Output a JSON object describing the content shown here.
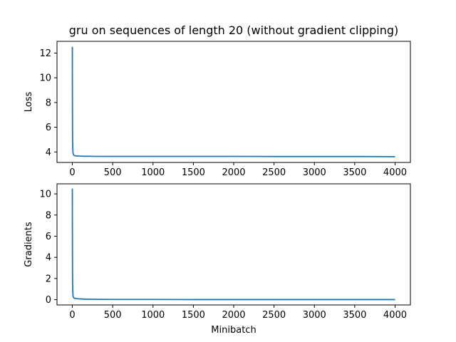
{
  "chart_data": [
    {
      "type": "line",
      "title": "gru on sequences of length 20 (without gradient clipping)",
      "xlabel": "",
      "ylabel": "Loss",
      "xlim": [
        -190,
        4190
      ],
      "ylim": [
        3.15,
        12.95
      ],
      "xticks": [
        0,
        500,
        1000,
        1500,
        2000,
        2500,
        3000,
        3500,
        4000
      ],
      "yticks": [
        4,
        6,
        8,
        10,
        12
      ],
      "grid": false,
      "color": "#1f77b4",
      "series": [
        {
          "x": [
            0,
            1,
            2,
            3,
            5,
            8,
            12,
            18,
            25,
            35,
            50,
            75,
            100,
            150,
            200,
            300,
            500,
            1000,
            1500,
            2000,
            2500,
            3000,
            3500,
            4000
          ],
          "y": [
            12.5,
            9.0,
            6.5,
            5.0,
            4.3,
            3.95,
            3.82,
            3.74,
            3.71,
            3.69,
            3.68,
            3.67,
            3.66,
            3.65,
            3.65,
            3.64,
            3.64,
            3.64,
            3.64,
            3.64,
            3.63,
            3.63,
            3.63,
            3.62
          ]
        }
      ]
    },
    {
      "type": "line",
      "title": "",
      "xlabel": "Minibatch",
      "ylabel": "Gradients",
      "xlim": [
        -190,
        4190
      ],
      "ylim": [
        -0.5,
        10.95
      ],
      "xticks": [
        0,
        500,
        1000,
        1500,
        2000,
        2500,
        3000,
        3500,
        4000
      ],
      "yticks": [
        0,
        2,
        4,
        6,
        8,
        10
      ],
      "grid": false,
      "color": "#1f77b4",
      "series": [
        {
          "x": [
            0,
            1,
            2,
            3,
            5,
            8,
            12,
            18,
            25,
            35,
            50,
            75,
            100,
            150,
            200,
            300,
            500,
            1000,
            1500,
            2000,
            2500,
            3000,
            3500,
            4000
          ],
          "y": [
            10.5,
            6.5,
            3.5,
            1.8,
            0.8,
            0.4,
            0.25,
            0.18,
            0.14,
            0.12,
            0.1,
            0.08,
            0.07,
            0.05,
            0.04,
            0.03,
            0.02,
            0.02,
            0.01,
            0.01,
            0.01,
            0.01,
            0.01,
            0.01
          ]
        }
      ]
    }
  ]
}
